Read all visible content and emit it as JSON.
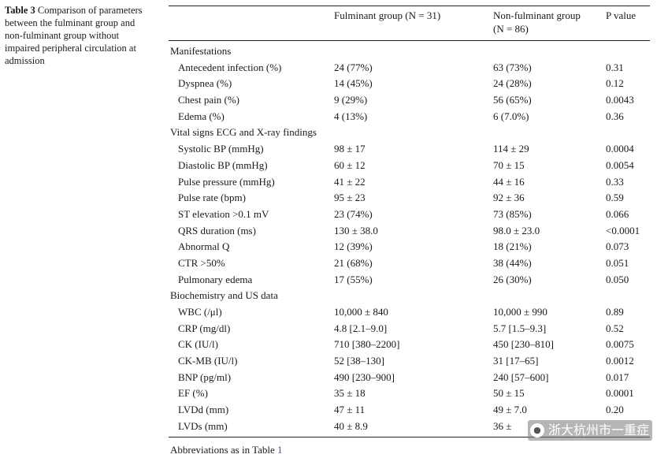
{
  "caption": {
    "label": "Table 3",
    "text": "Comparison of parameters between the fulminant group and non-fulminant group without impaired peripheral circulation at admission"
  },
  "headers": {
    "fulminant": "Fulminant group (N = 31)",
    "nonfulminant_line1": "Non-fulminant group",
    "nonfulminant_line2": "(N = 86)",
    "pvalue": "P value"
  },
  "rows": [
    {
      "param": "Manifestations",
      "section": true
    },
    {
      "param": "Antecedent infection (%)",
      "f": "24 (77%)",
      "nf": "63 (73%)",
      "p": "0.31"
    },
    {
      "param": "Dyspnea (%)",
      "f": "14 (45%)",
      "nf": "24 (28%)",
      "p": "0.12"
    },
    {
      "param": "Chest pain (%)",
      "f": "9 (29%)",
      "nf": "56 (65%)",
      "p": "0.0043"
    },
    {
      "param": "Edema (%)",
      "f": "4 (13%)",
      "nf": "6 (7.0%)",
      "p": "0.36"
    },
    {
      "param": "Vital signs ECG and X-ray findings",
      "section": true
    },
    {
      "param": "Systolic BP (mmHg)",
      "f": "98 ± 17",
      "nf": "114 ± 29",
      "p": "0.0004"
    },
    {
      "param": "Diastolic BP (mmHg)",
      "f": "60 ± 12",
      "nf": "70 ± 15",
      "p": "0.0054"
    },
    {
      "param": "Pulse pressure (mmHg)",
      "f": "41 ± 22",
      "nf": "44 ± 16",
      "p": "0.33"
    },
    {
      "param": "Pulse rate (bpm)",
      "f": "95 ± 23",
      "nf": "92 ± 36",
      "p": "0.59"
    },
    {
      "param": "ST elevation >0.1 mV",
      "f": "23 (74%)",
      "nf": "73 (85%)",
      "p": "0.066"
    },
    {
      "param": "QRS duration (ms)",
      "f": "130 ± 38.0",
      "nf": "98.0 ± 23.0",
      "p": "<0.0001"
    },
    {
      "param": "Abnormal Q",
      "f": "12 (39%)",
      "nf": "18 (21%)",
      "p": "0.073"
    },
    {
      "param": "CTR >50%",
      "f": "21 (68%)",
      "nf": "38 (44%)",
      "p": "0.051"
    },
    {
      "param": "Pulmonary edema",
      "f": "17 (55%)",
      "nf": "26 (30%)",
      "p": "0.050"
    },
    {
      "param": "Biochemistry and US data",
      "section": true
    },
    {
      "param": "WBC (/μl)",
      "f": "10,000 ± 840",
      "nf": "10,000 ± 990",
      "p": "0.89"
    },
    {
      "param": "CRP (mg/dl)",
      "f": "4.8 [2.1–9.0]",
      "nf": "5.7 [1.5–9.3]",
      "p": "0.52"
    },
    {
      "param": "CK (IU/l)",
      "f": "710 [380–2200]",
      "nf": "450 [230–810]",
      "p": "0.0075"
    },
    {
      "param": "CK-MB (IU/l)",
      "f": "52 [38–130]",
      "nf": "31 [17–65]",
      "p": "0.0012"
    },
    {
      "param": "BNP (pg/ml)",
      "f": "490 [230–900]",
      "nf": "240 [57–600]",
      "p": "0.017"
    },
    {
      "param": "EF (%)",
      "f": "35 ± 18",
      "nf": "50 ± 15",
      "p": "0.0001"
    },
    {
      "param": "LVDd (mm)",
      "f": "47 ± 11",
      "nf": "49 ± 7.0",
      "p": "0.20"
    },
    {
      "param": "LVDs (mm)",
      "f": "40 ± 8.9",
      "nf": "36 ± ",
      "p": ""
    }
  ],
  "footnote": {
    "text": "Abbreviations as in Table ",
    "link": "1"
  },
  "watermark": {
    "icon": "wechat-icon",
    "text": "浙大杭州市一重症"
  }
}
